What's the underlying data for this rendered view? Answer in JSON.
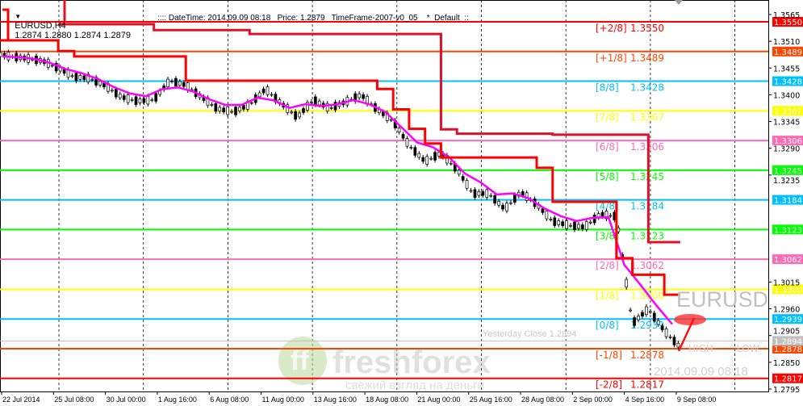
{
  "header": {
    "symbol": "EURUSD,H4",
    "ohlc": "1.2874 1.2880 1.2874 1.2879",
    "info": ":::: DateTime: 2014.09.09 08:18   Price: 1.2879   TimeFrame-2007-v0_05    *  Default  ::"
  },
  "watermark": {
    "symbol": "EURUSD",
    "datetime": "2014.09.09 08:18",
    "yesterday_close": "Yesterday Close 1.2894",
    "high": "HIGH",
    "low": "LOW",
    "logo_name": "freshforex",
    "logo_slogan": "свежий взгляд на деньги"
  },
  "chart_data": {
    "type": "candlestick",
    "symbol": "EURUSD",
    "timeframe": "H4",
    "ylim": [
      1.2795,
      1.3565
    ],
    "y_ticks": [
      "1.3565",
      "1.3510",
      "1.3455",
      "1.3400",
      "1.3345",
      "1.3290",
      "1.3235",
      "1.3015",
      "1.2960",
      "1.2905",
      "1.2850",
      "1.2795"
    ],
    "x_ticks": [
      "22 Jul 2014",
      "25 Jul 08:00",
      "30 Jul 00:00",
      "1 Aug 16:00",
      "6 Aug 08:00",
      "11 Aug 00:00",
      "13 Aug 16:00",
      "18 Aug 08:00",
      "21 Aug 00:00",
      "25 Aug 16:00",
      "28 Aug 08:00",
      "2 Sep 00:00",
      "4 Sep 16:00",
      "9 Sep 08:00"
    ],
    "close_approx": [
      1.3479,
      1.3475,
      1.347,
      1.3455,
      1.3437,
      1.3434,
      1.3418,
      1.3395,
      1.3387,
      1.339,
      1.3429,
      1.342,
      1.3395,
      1.3371,
      1.3365,
      1.338,
      1.3412,
      1.3382,
      1.3354,
      1.339,
      1.3372,
      1.3385,
      1.34,
      1.337,
      1.3346,
      1.3296,
      1.3263,
      1.328,
      1.3247,
      1.3197,
      1.3197,
      1.3165,
      1.32,
      1.3175,
      1.314,
      1.3132,
      1.3128,
      1.3155,
      1.315,
      1.293,
      1.296,
      1.2915,
      1.2881
    ],
    "step_line_outer": [
      null,
      null,
      null,
      null,
      1.3545,
      1.3545,
      1.3545,
      1.3545,
      1.3545,
      1.3545,
      1.3533,
      1.3533,
      1.3533,
      1.3533,
      1.3533,
      1.3533,
      1.3525,
      1.3525,
      1.3525,
      1.3525,
      1.3525,
      1.3525,
      1.3525,
      1.3525,
      1.3525,
      1.3525,
      1.3525,
      1.3525,
      1.3329,
      1.332,
      1.332,
      1.332,
      1.332,
      1.332,
      1.332,
      1.3318,
      1.3318,
      1.3318,
      1.3318,
      1.3318,
      1.3318,
      1.3097,
      1.3097
    ],
    "step_line_inner": [
      1.3512,
      1.3512,
      1.3512,
      1.3512,
      1.349,
      1.3479,
      1.3479,
      1.3479,
      1.3479,
      1.3479,
      1.3479,
      1.3479,
      1.3429,
      1.3429,
      1.3429,
      1.3429,
      1.3429,
      1.3429,
      1.3429,
      1.3429,
      1.3429,
      1.3429,
      1.3429,
      1.3429,
      1.3412,
      1.337,
      1.333,
      1.33,
      1.3271,
      1.3271,
      1.3271,
      1.3271,
      1.3271,
      1.3271,
      1.325,
      1.318,
      1.318,
      1.318,
      1.318,
      1.3064,
      1.303,
      1.303,
      1.2989
    ],
    "levels": [
      {
        "label": "[+2/8]",
        "value": "1.3550",
        "price": 1.355,
        "color": "#ff0000"
      },
      {
        "label": "[+1/8]",
        "value": "1.3489",
        "price": 1.3489,
        "color": "#ff4500"
      },
      {
        "label": "[8/8]",
        "value": "1.3428",
        "price": 1.3428,
        "color": "#00bfff"
      },
      {
        "label": "[7/8]",
        "value": "1.3367",
        "price": 1.3367,
        "color": "#ffff00"
      },
      {
        "label": "[6/8]",
        "value": "1.3306",
        "price": 1.3306,
        "color": "#ff69b4"
      },
      {
        "label": "[5/8]",
        "value": "1.3245",
        "price": 1.3245,
        "color": "#00ff00"
      },
      {
        "label": "[4/8]",
        "value": "1.3184",
        "price": 1.3184,
        "color": "#00bfff"
      },
      {
        "label": "[3/8]",
        "value": "1.3123",
        "price": 1.3123,
        "color": "#00ff00"
      },
      {
        "label": "[2/8]",
        "value": "1.3062",
        "price": 1.3062,
        "color": "#ff69b4"
      },
      {
        "label": "[1/8]",
        "value": "1.3000",
        "price": 1.3,
        "color": "#ffff00"
      },
      {
        "label": "[0/8]",
        "value": "1.2939",
        "price": 1.2939,
        "color": "#00bfff"
      },
      {
        "label": "[-1/8]",
        "value": "1.2878",
        "price": 1.2878,
        "color": "#ff4500"
      },
      {
        "label": "[-2/8]",
        "value": "1.2817",
        "price": 1.2817,
        "color": "#ff0000"
      }
    ],
    "yesterday_close_level": {
      "value": "1.2894",
      "price": 1.2894,
      "color": "#c0c0c0"
    },
    "colors": {
      "ma": "#ff00ff",
      "step": "#ff0000",
      "step_inner": "#e0102a",
      "candle": "#000000"
    }
  }
}
